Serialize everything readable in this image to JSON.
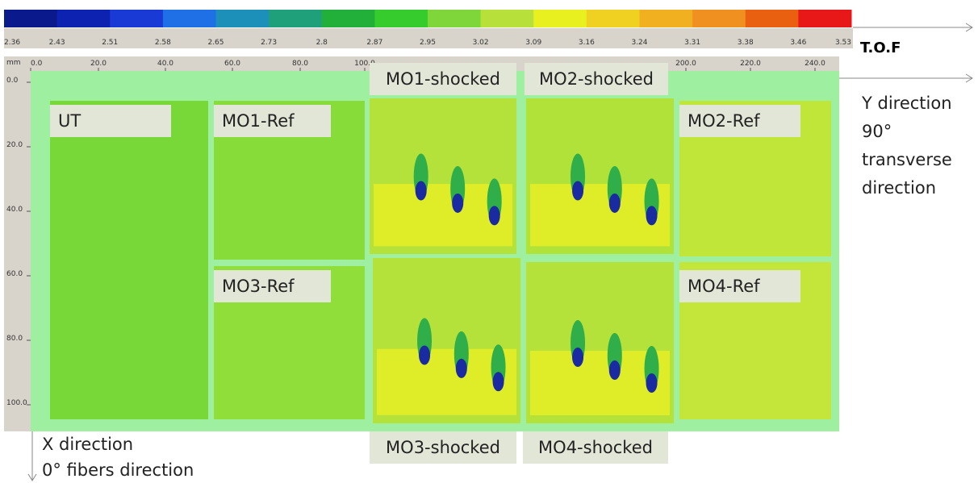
{
  "colorbar": {
    "colors": [
      "#0a1a8c",
      "#0d22b0",
      "#1a3ad6",
      "#1f6fe6",
      "#1c90b8",
      "#1fa07a",
      "#22b03a",
      "#36cc2e",
      "#7fd63a",
      "#b8e03a",
      "#e8f020",
      "#f0d020",
      "#f0b020",
      "#f09020",
      "#e86010",
      "#e81818"
    ],
    "ticks": [
      "2.36",
      "2.43",
      "2.51",
      "2.58",
      "2.65",
      "2.73",
      "2.8",
      "2.87",
      "2.95",
      "3.02",
      "3.09",
      "3.16",
      "3.24",
      "3.31",
      "3.38",
      "3.46",
      "3.53"
    ],
    "label": "T.O.F"
  },
  "ruler": {
    "unit": "mm",
    "x_labels": [
      "0.0",
      "20.0",
      "40.0",
      "60.0",
      "80.0",
      "100.0",
      "200.0",
      "220.0",
      "240.0"
    ],
    "y_labels": [
      "0.0",
      "20.0",
      "40.0",
      "60.0",
      "80.0",
      "100.0"
    ]
  },
  "panels": [
    "UT",
    "MO1-Ref",
    "MO3-Ref",
    "MO1-shocked",
    "MO3-shocked",
    "MO2-shocked",
    "MO4-shocked",
    "MO2-Ref",
    "MO4-Ref"
  ],
  "y_axis_note": [
    "Y direction",
    "90°",
    "transverse",
    "direction"
  ],
  "x_axis_note": [
    "X direction",
    "0° fibers direction"
  ]
}
